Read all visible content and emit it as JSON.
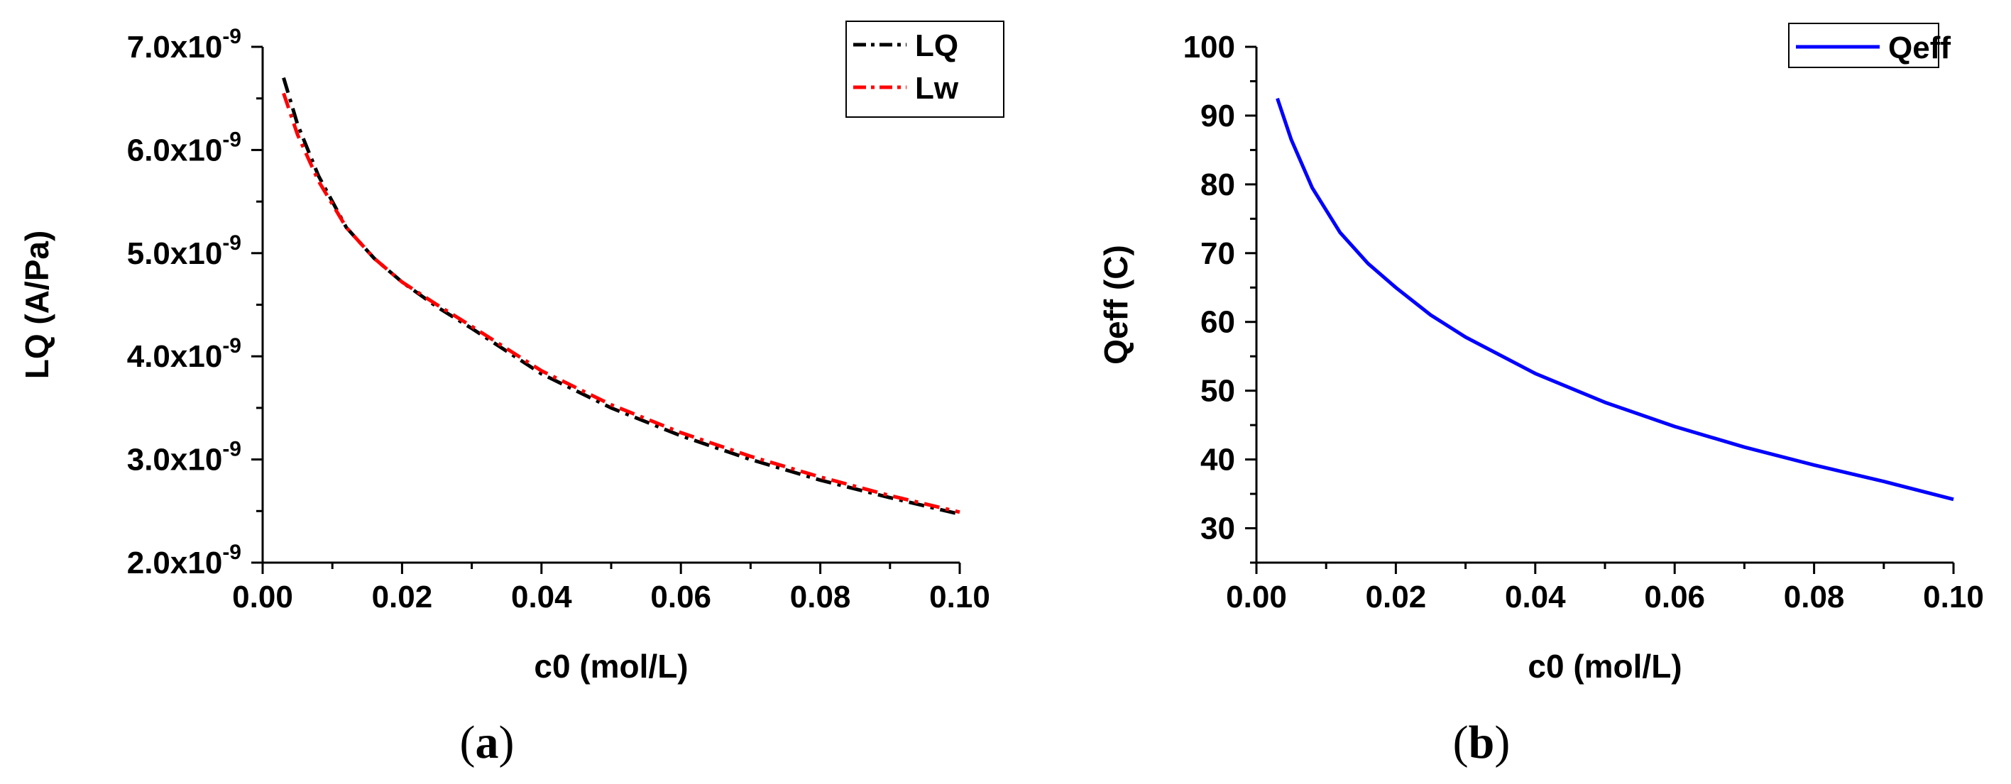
{
  "chart_data": [
    {
      "type": "line",
      "panel_label": {
        "open": "(",
        "letter": "a",
        "close": ")"
      },
      "xlabel": "c0 (mol/L)",
      "ylabel": "LQ (A/Pa)",
      "xlim": [
        0.0,
        0.1
      ],
      "ylim": [
        2e-09,
        7e-09
      ],
      "x_ticks": [
        {
          "value": 0.0,
          "label": "0.00"
        },
        {
          "value": 0.02,
          "label": "0.02"
        },
        {
          "value": 0.04,
          "label": "0.04"
        },
        {
          "value": 0.06,
          "label": "0.06"
        },
        {
          "value": 0.08,
          "label": "0.08"
        },
        {
          "value": 0.1,
          "label": "0.10"
        }
      ],
      "y_ticks": [
        {
          "value": 2e-09,
          "mantissa": "2.0x10",
          "exponent": "-9"
        },
        {
          "value": 3e-09,
          "mantissa": "3.0x10",
          "exponent": "-9"
        },
        {
          "value": 4e-09,
          "mantissa": "4.0x10",
          "exponent": "-9"
        },
        {
          "value": 5e-09,
          "mantissa": "5.0x10",
          "exponent": "-9"
        },
        {
          "value": 6e-09,
          "mantissa": "6.0x10",
          "exponent": "-9"
        },
        {
          "value": 7e-09,
          "mantissa": "7.0x10",
          "exponent": "-9"
        }
      ],
      "legend_position": "top-right",
      "series": [
        {
          "name": "LQ",
          "color": "#000000",
          "style": "dash-dot",
          "x": [
            0.003,
            0.005,
            0.008,
            0.012,
            0.016,
            0.02,
            0.025,
            0.03,
            0.04,
            0.05,
            0.06,
            0.07,
            0.08,
            0.09,
            0.1
          ],
          "y": [
            6.7e-09,
            6.25e-09,
            5.75e-09,
            5.25e-09,
            4.95e-09,
            4.72e-09,
            4.48e-09,
            4.27e-09,
            3.83e-09,
            3.5e-09,
            3.23e-09,
            3e-09,
            2.8e-09,
            2.63e-09,
            2.47e-09
          ]
        },
        {
          "name": "Lw",
          "color": "#ff0000",
          "style": "dash-dot",
          "x": [
            0.003,
            0.005,
            0.008,
            0.012,
            0.016,
            0.02,
            0.025,
            0.03,
            0.04,
            0.05,
            0.06,
            0.07,
            0.08,
            0.09,
            0.1
          ],
          "y": [
            6.55e-09,
            6.15e-09,
            5.7e-09,
            5.25e-09,
            4.95e-09,
            4.72e-09,
            4.5e-09,
            4.29e-09,
            3.86e-09,
            3.53e-09,
            3.26e-09,
            3.03e-09,
            2.83e-09,
            2.65e-09,
            2.49e-09
          ]
        }
      ]
    },
    {
      "type": "line",
      "panel_label": {
        "open": "(",
        "letter": "b",
        "close": ")"
      },
      "xlabel": "c0 (mol/L)",
      "ylabel": "Qeff (C)",
      "xlim": [
        0.0,
        0.1
      ],
      "ylim": [
        25,
        100
      ],
      "x_ticks": [
        {
          "value": 0.0,
          "label": "0.00"
        },
        {
          "value": 0.02,
          "label": "0.02"
        },
        {
          "value": 0.04,
          "label": "0.04"
        },
        {
          "value": 0.06,
          "label": "0.06"
        },
        {
          "value": 0.08,
          "label": "0.08"
        },
        {
          "value": 0.1,
          "label": "0.10"
        }
      ],
      "y_ticks": [
        {
          "value": 30,
          "label": "30"
        },
        {
          "value": 40,
          "label": "40"
        },
        {
          "value": 50,
          "label": "50"
        },
        {
          "value": 60,
          "label": "60"
        },
        {
          "value": 70,
          "label": "70"
        },
        {
          "value": 80,
          "label": "80"
        },
        {
          "value": 90,
          "label": "90"
        },
        {
          "value": 100,
          "label": "100"
        }
      ],
      "legend_position": "top-right",
      "series": [
        {
          "name": "Qeff",
          "color": "#0000ff",
          "style": "solid",
          "x": [
            0.003,
            0.005,
            0.008,
            0.012,
            0.016,
            0.02,
            0.025,
            0.03,
            0.04,
            0.05,
            0.06,
            0.07,
            0.08,
            0.09,
            0.1
          ],
          "y": [
            92.5,
            86.5,
            79.5,
            73.0,
            68.5,
            65.0,
            61.0,
            57.8,
            52.5,
            48.3,
            44.8,
            41.8,
            39.2,
            36.8,
            34.2
          ]
        }
      ]
    }
  ]
}
